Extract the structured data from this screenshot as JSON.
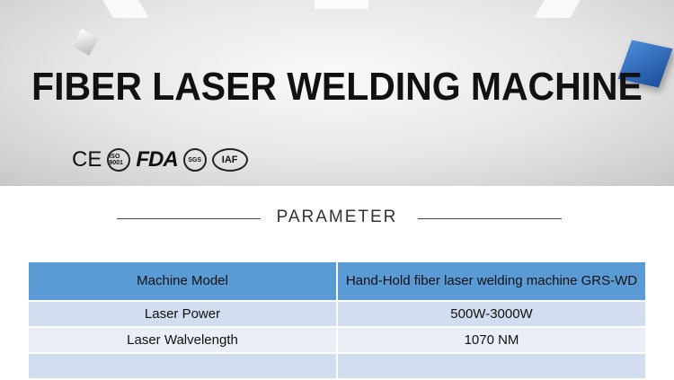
{
  "banner": {
    "title": "FIBER LASER WELDING MACHINE",
    "certifications": [
      "CE",
      "ISO 9001",
      "FDA",
      "SGS",
      "IAF"
    ],
    "accent": "#2a63b8"
  },
  "section": {
    "heading": "PARAMETER"
  },
  "table": {
    "header_color": "#5b9bd5",
    "rows": [
      {
        "label": "Machine Model",
        "value": "Hand-Hold fiber laser welding machine GRS-WD"
      },
      {
        "label": "Laser Power",
        "value": "500W-3000W"
      },
      {
        "label": "Laser Walvelength",
        "value": "1070 NM"
      },
      {
        "label": "",
        "value": ""
      }
    ]
  }
}
